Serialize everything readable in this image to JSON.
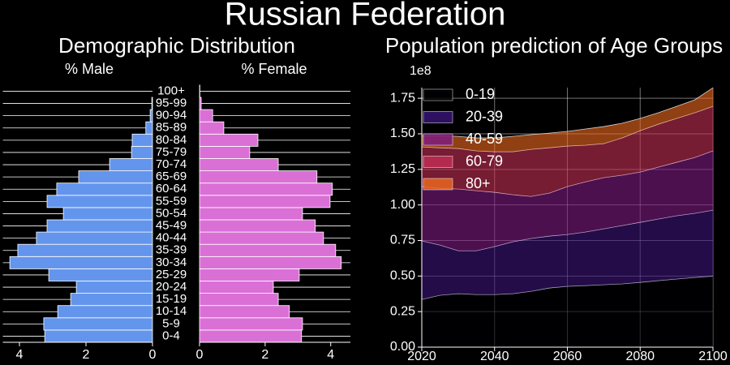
{
  "title": "Russian Federation",
  "subtitle": "Demographic Distribution",
  "chart_data": [
    {
      "type": "barh",
      "title": "% Male",
      "categories": [
        "0-4",
        "5-9",
        "10-14",
        "15-19",
        "20-24",
        "25-29",
        "30-34",
        "35-39",
        "40-44",
        "45-49",
        "50-54",
        "55-59",
        "60-64",
        "65-69",
        "70-74",
        "75-79",
        "80-84",
        "85-89",
        "90-94",
        "95-99",
        "100+"
      ],
      "values": [
        3.24,
        3.27,
        2.85,
        2.46,
        2.29,
        3.12,
        4.29,
        4.05,
        3.49,
        3.17,
        2.68,
        3.17,
        2.88,
        2.22,
        1.29,
        0.63,
        0.61,
        0.2,
        0.07,
        0.02,
        0.0
      ],
      "color": "#6495ed",
      "xlim": [
        4.5,
        0
      ],
      "xticks": [
        4,
        2,
        0
      ],
      "grid": true
    },
    {
      "type": "barh",
      "title": "% Female",
      "values": [
        3.11,
        3.14,
        2.74,
        2.4,
        2.25,
        3.04,
        4.32,
        4.15,
        3.78,
        3.53,
        3.14,
        3.98,
        4.05,
        3.58,
        2.4,
        1.53,
        1.78,
        0.74,
        0.4,
        0.05,
        0.01
      ],
      "color": "#da70d6",
      "xlim": [
        0,
        4.6
      ],
      "xticks": [
        0,
        2,
        4
      ],
      "grid": true
    },
    {
      "type": "area",
      "stacked": true,
      "title": "Population prediction of Age Groups",
      "y_offset_label": "1e8",
      "x": [
        2020,
        2025,
        2030,
        2035,
        2040,
        2045,
        2050,
        2055,
        2060,
        2065,
        2070,
        2075,
        2080,
        2085,
        2090,
        2095,
        2100
      ],
      "xlim": [
        2020,
        2100
      ],
      "xticks": [
        2020,
        2040,
        2060,
        2080,
        2100
      ],
      "ylim": [
        0,
        1.825
      ],
      "yticks": [
        {
          "value": 0,
          "label": "0.00"
        },
        0.25,
        {
          "value": 0.5,
          "label": "0.50"
        },
        0.75,
        {
          "value": 1,
          "label": "1.00"
        },
        1.25,
        {
          "value": 1.5,
          "label": "1.50"
        },
        1.75
      ],
      "grid": true,
      "legend": "upper left",
      "opacity": 0.6,
      "series": [
        {
          "name": "0-19",
          "color": "#000004",
          "values": [
            0.336,
            0.365,
            0.376,
            0.37,
            0.37,
            0.376,
            0.393,
            0.416,
            0.428,
            0.433,
            0.439,
            0.445,
            0.456,
            0.468,
            0.479,
            0.49,
            0.5
          ]
        },
        {
          "name": "20-39",
          "color": "#3a1478",
          "values": [
            0.411,
            0.353,
            0.302,
            0.308,
            0.337,
            0.365,
            0.371,
            0.365,
            0.364,
            0.377,
            0.393,
            0.41,
            0.422,
            0.433,
            0.445,
            0.451,
            0.463
          ]
        },
        {
          "name": "40-59",
          "color": "#7e1a84",
          "values": [
            0.382,
            0.399,
            0.434,
            0.422,
            0.382,
            0.331,
            0.296,
            0.302,
            0.337,
            0.353,
            0.36,
            0.354,
            0.353,
            0.365,
            0.376,
            0.393,
            0.417
          ]
        },
        {
          "name": "60-79",
          "color": "#c42e55",
          "values": [
            0.279,
            0.285,
            0.285,
            0.28,
            0.285,
            0.302,
            0.331,
            0.319,
            0.285,
            0.257,
            0.239,
            0.262,
            0.291,
            0.302,
            0.308,
            0.314,
            0.313
          ]
        },
        {
          "name": "80+",
          "color": "#f06a1e",
          "values": [
            0.08,
            0.086,
            0.085,
            0.091,
            0.097,
            0.108,
            0.103,
            0.103,
            0.103,
            0.114,
            0.12,
            0.103,
            0.086,
            0.08,
            0.085,
            0.091,
            0.131
          ]
        }
      ]
    }
  ]
}
